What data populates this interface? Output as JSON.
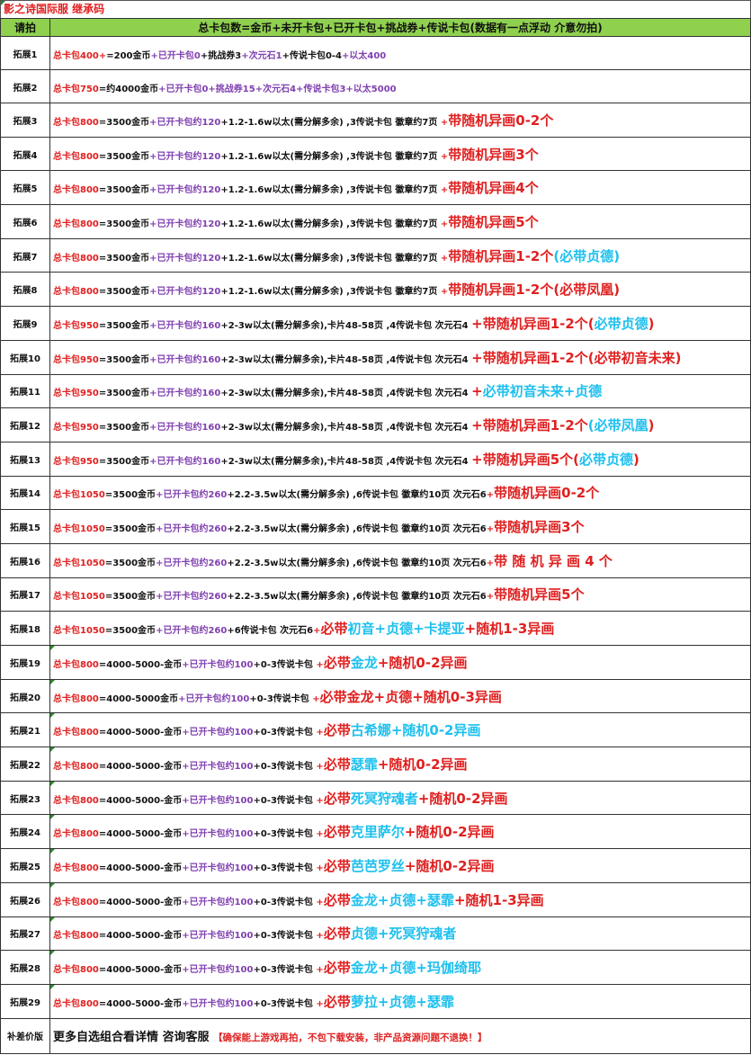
{
  "title": "影之诗国际服 继承码",
  "header": {
    "col1": "请拍",
    "col2": "总卡包数=金币+未开卡包+已开卡包+挑战券+传说卡包(数据有一点浮动 介意勿拍)"
  },
  "colors": {
    "header_bg": "#8fd14f",
    "red": "#e02020",
    "purple": "#8040b0",
    "cyan": "#1ec0ee"
  },
  "rows": [
    {
      "label": "拓展1",
      "segments": [
        {
          "t": "总卡包400+",
          "s": "r"
        },
        {
          "t": "=200金币",
          "s": "k"
        },
        {
          "t": "+已开卡包0",
          "s": "p"
        },
        {
          "t": "+挑战券3",
          "s": "k"
        },
        {
          "t": "+次元石1",
          "s": "p"
        },
        {
          "t": "+传说卡包0-4",
          "s": "k"
        },
        {
          "t": "+以太400",
          "s": "p"
        }
      ]
    },
    {
      "label": "拓展2",
      "segments": [
        {
          "t": "总卡包750",
          "s": "r"
        },
        {
          "t": "=约4000金币",
          "s": "k"
        },
        {
          "t": "+已开卡包0+挑战券15+次元石4+传说卡包3+以太5000",
          "s": "p"
        }
      ]
    },
    {
      "label": "拓展3",
      "segments": [
        {
          "t": "总卡包800",
          "s": "r"
        },
        {
          "t": "=3500金币",
          "s": "k"
        },
        {
          "t": "+已开卡包约120",
          "s": "p"
        },
        {
          "t": "+1.2-1.6w以太(需分解多余) ,3传说卡包 徽章约7页  ",
          "s": "k"
        },
        {
          "t": "+",
          "s": "r"
        },
        {
          "t": "带随机异画0-2个",
          "s": "R"
        }
      ]
    },
    {
      "label": "拓展4",
      "segments": [
        {
          "t": "总卡包800",
          "s": "r"
        },
        {
          "t": "=3500金币",
          "s": "k"
        },
        {
          "t": "+已开卡包约120",
          "s": "p"
        },
        {
          "t": "+1.2-1.6w以太(需分解多余) ,3传说卡包 徽章约7页  ",
          "s": "k"
        },
        {
          "t": "+",
          "s": "r"
        },
        {
          "t": "带随机异画3个",
          "s": "R"
        }
      ]
    },
    {
      "label": "拓展5",
      "segments": [
        {
          "t": "总卡包800",
          "s": "r"
        },
        {
          "t": "=3500金币",
          "s": "k"
        },
        {
          "t": "+已开卡包约120",
          "s": "p"
        },
        {
          "t": "+1.2-1.6w以太(需分解多余) ,3传说卡包 徽章约7页  ",
          "s": "k"
        },
        {
          "t": "+",
          "s": "r"
        },
        {
          "t": "带随机异画4个",
          "s": "R"
        }
      ]
    },
    {
      "label": "拓展6",
      "segments": [
        {
          "t": "总卡包800",
          "s": "r"
        },
        {
          "t": "=3500金币",
          "s": "k"
        },
        {
          "t": "+已开卡包约120",
          "s": "p"
        },
        {
          "t": "+1.2-1.6w以太(需分解多余) ,3传说卡包 徽章约7页  ",
          "s": "k"
        },
        {
          "t": "+",
          "s": "r"
        },
        {
          "t": "带随机异画5个",
          "s": "R"
        }
      ]
    },
    {
      "label": "拓展7",
      "segments": [
        {
          "t": "总卡包800",
          "s": "r"
        },
        {
          "t": "=3500金币",
          "s": "k"
        },
        {
          "t": "+已开卡包约120",
          "s": "p"
        },
        {
          "t": "+1.2-1.6w以太(需分解多余) ,3传说卡包 徽章约7页  ",
          "s": "k"
        },
        {
          "t": "+",
          "s": "r"
        },
        {
          "t": "带随机异画1-2个",
          "s": "R"
        },
        {
          "t": "(必带贞德)",
          "s": "C"
        }
      ]
    },
    {
      "label": "拓展8",
      "segments": [
        {
          "t": "总卡包800",
          "s": "r"
        },
        {
          "t": "=3500金币",
          "s": "k"
        },
        {
          "t": "+已开卡包约120",
          "s": "p"
        },
        {
          "t": "+1.2-1.6w以太(需分解多余) ,3传说卡包 徽章约7页  ",
          "s": "k"
        },
        {
          "t": "+",
          "s": "r"
        },
        {
          "t": "带随机异画1-2个(必带凤凰)",
          "s": "R"
        }
      ]
    },
    {
      "label": "拓展9",
      "segments": [
        {
          "t": "总卡包950",
          "s": "r"
        },
        {
          "t": "=3500金币",
          "s": "k"
        },
        {
          "t": "+已开卡包约160",
          "s": "p"
        },
        {
          "t": "+2-3w以太(需分解多余),卡片48-58页 ,4传说卡包   次元石4 ",
          "s": "k"
        },
        {
          "t": "+带随机异画1-2个(",
          "s": "R"
        },
        {
          "t": "必带贞德",
          "s": "C"
        },
        {
          "t": ")",
          "s": "R"
        }
      ]
    },
    {
      "label": "拓展10",
      "segments": [
        {
          "t": "总卡包950",
          "s": "r"
        },
        {
          "t": "=3500金币",
          "s": "k"
        },
        {
          "t": "+已开卡包约160",
          "s": "p"
        },
        {
          "t": "+2-3w以太(需分解多余),卡片48-58页 ,4传说卡包   次元石4 ",
          "s": "k"
        },
        {
          "t": "+带随机异画1-2个(必带初音未来)",
          "s": "R"
        }
      ]
    },
    {
      "label": "拓展11",
      "segments": [
        {
          "t": "总卡包950",
          "s": "r"
        },
        {
          "t": "=3500金币",
          "s": "k"
        },
        {
          "t": "+已开卡包约160",
          "s": "p"
        },
        {
          "t": "+2-3w以太(需分解多余),卡片48-58页 ,4传说卡包   次元石4 ",
          "s": "k"
        },
        {
          "t": "+",
          "s": "R"
        },
        {
          "t": "必带初音未来+贞德",
          "s": "C"
        }
      ]
    },
    {
      "label": "拓展12",
      "segments": [
        {
          "t": "总卡包950",
          "s": "r"
        },
        {
          "t": "=3500金币",
          "s": "k"
        },
        {
          "t": "+已开卡包约160",
          "s": "p"
        },
        {
          "t": "+2-3w以太(需分解多余),卡片48-58页 ,4传说卡包   次元石4 ",
          "s": "k"
        },
        {
          "t": "+带随机异画1-2个",
          "s": "R"
        },
        {
          "t": "(必带凤凰",
          "s": "C"
        },
        {
          "t": ")",
          "s": "R"
        }
      ]
    },
    {
      "label": "拓展13",
      "segments": [
        {
          "t": "总卡包950",
          "s": "r"
        },
        {
          "t": "=3500金币",
          "s": "k"
        },
        {
          "t": "+已开卡包约160",
          "s": "p"
        },
        {
          "t": "+2-3w以太(需分解多余),卡片48-58页 ,4传说卡包   次元石4 ",
          "s": "k"
        },
        {
          "t": "+带随机异画5个(",
          "s": "R"
        },
        {
          "t": "必带贞德",
          "s": "C"
        },
        {
          "t": ")",
          "s": "R"
        }
      ]
    },
    {
      "label": "拓展14",
      "segments": [
        {
          "t": "总卡包1050",
          "s": "r"
        },
        {
          "t": "=3500金币",
          "s": "k"
        },
        {
          "t": "+已开卡包约260",
          "s": "p"
        },
        {
          "t": "+2.2-3.5w以太(需分解多余) ,6传说卡包 徽章约10页  次元石6",
          "s": "k"
        },
        {
          "t": "+",
          "s": "r"
        },
        {
          "t": "带随机异画0-2个",
          "s": "R"
        }
      ]
    },
    {
      "label": "拓展15",
      "segments": [
        {
          "t": "总卡包1050",
          "s": "r"
        },
        {
          "t": "=3500金币",
          "s": "k"
        },
        {
          "t": "+已开卡包约260",
          "s": "p"
        },
        {
          "t": "+2.2-3.5w以太(需分解多余) ,6传说卡包 徽章约10页  次元石6",
          "s": "k"
        },
        {
          "t": "+",
          "s": "r"
        },
        {
          "t": "带随机异画3个",
          "s": "R"
        }
      ]
    },
    {
      "label": "拓展16",
      "segments": [
        {
          "t": "总卡包1050",
          "s": "r"
        },
        {
          "t": "=3500金币",
          "s": "k"
        },
        {
          "t": "+已开卡包约260",
          "s": "p"
        },
        {
          "t": "+2.2-3.5w以太(需分解多余) ,6传说卡包 徽章约10页  次元石6",
          "s": "k"
        },
        {
          "t": "+",
          "s": "r"
        },
        {
          "t": "带 随 机 异 画 4 个",
          "s": "R"
        }
      ]
    },
    {
      "label": "拓展17",
      "segments": [
        {
          "t": "总卡包1050",
          "s": "r"
        },
        {
          "t": "=3500金币",
          "s": "k"
        },
        {
          "t": "+已开卡包约260",
          "s": "p"
        },
        {
          "t": "+2.2-3.5w以太(需分解多余) ,6传说卡包 徽章约10页  次元石6",
          "s": "k"
        },
        {
          "t": "+",
          "s": "r"
        },
        {
          "t": "带随机异画5个",
          "s": "R"
        }
      ]
    },
    {
      "label": "拓展18",
      "segments": [
        {
          "t": "总卡包1050",
          "s": "r"
        },
        {
          "t": "=3500金币",
          "s": "k"
        },
        {
          "t": "+已开卡包约260",
          "s": "p"
        },
        {
          "t": "+6传说卡包 次元石6",
          "s": "k"
        },
        {
          "t": "+",
          "s": "r"
        },
        {
          "t": "必带",
          "s": "R"
        },
        {
          "t": "初音+贞德+卡提亚",
          "s": "C"
        },
        {
          "t": "+随机1-3异画",
          "s": "R"
        }
      ]
    },
    {
      "label": "拓展19",
      "segments": [
        {
          "t": "总卡包800",
          "s": "r"
        },
        {
          "t": "=4000-5000-金币",
          "s": "k"
        },
        {
          "t": "+已开卡包约100",
          "s": "p"
        },
        {
          "t": "+0-3传说卡包  ",
          "s": "k"
        },
        {
          "t": "+",
          "s": "r"
        },
        {
          "t": "必带",
          "s": "R"
        },
        {
          "t": "金龙",
          "s": "C"
        },
        {
          "t": "+随机0-2异画",
          "s": "R"
        }
      ]
    },
    {
      "label": "拓展20",
      "segments": [
        {
          "t": "总卡包800",
          "s": "r"
        },
        {
          "t": "=4000-5000金币",
          "s": "k"
        },
        {
          "t": "+已开卡包约100",
          "s": "p"
        },
        {
          "t": "+0-3传说卡包  ",
          "s": "k"
        },
        {
          "t": "+",
          "s": "r"
        },
        {
          "t": "必带金龙+贞德+随机0-3异画",
          "s": "R"
        }
      ]
    },
    {
      "label": "拓展21",
      "segments": [
        {
          "t": "总卡包800",
          "s": "r"
        },
        {
          "t": "=4000-5000-金币",
          "s": "k"
        },
        {
          "t": "+已开卡包约100",
          "s": "p"
        },
        {
          "t": "+0-3传说卡包  ",
          "s": "k"
        },
        {
          "t": "+",
          "s": "r"
        },
        {
          "t": "必带",
          "s": "R"
        },
        {
          "t": "古希娜+随机0-2异画",
          "s": "C"
        }
      ]
    },
    {
      "label": "拓展22",
      "segments": [
        {
          "t": "总卡包800",
          "s": "r"
        },
        {
          "t": "=4000-5000-金币",
          "s": "k"
        },
        {
          "t": "+已开卡包约100",
          "s": "p"
        },
        {
          "t": "+0-3传说卡包  ",
          "s": "k"
        },
        {
          "t": "+",
          "s": "r"
        },
        {
          "t": "必带",
          "s": "R"
        },
        {
          "t": "瑟霏",
          "s": "C"
        },
        {
          "t": "+随机0-2异画",
          "s": "R"
        }
      ]
    },
    {
      "label": "拓展23",
      "segments": [
        {
          "t": "总卡包800",
          "s": "r"
        },
        {
          "t": "=4000-5000-金币",
          "s": "k"
        },
        {
          "t": "+已开卡包约100",
          "s": "p"
        },
        {
          "t": "+0-3传说卡包  ",
          "s": "k"
        },
        {
          "t": "+",
          "s": "r"
        },
        {
          "t": "必带",
          "s": "R"
        },
        {
          "t": "死冥狩魂者",
          "s": "C"
        },
        {
          "t": "+随机0-2异画",
          "s": "R"
        }
      ]
    },
    {
      "label": "拓展24",
      "segments": [
        {
          "t": "总卡包800",
          "s": "r"
        },
        {
          "t": "=4000-5000-金币",
          "s": "k"
        },
        {
          "t": "+已开卡包约100",
          "s": "p"
        },
        {
          "t": "+0-3传说卡包  ",
          "s": "k"
        },
        {
          "t": "+",
          "s": "r"
        },
        {
          "t": "必带",
          "s": "R"
        },
        {
          "t": "克里萨尔",
          "s": "C"
        },
        {
          "t": "+随机0-2异画",
          "s": "R"
        }
      ]
    },
    {
      "label": "拓展25",
      "segments": [
        {
          "t": "总卡包800",
          "s": "r"
        },
        {
          "t": "=4000-5000-金币",
          "s": "k"
        },
        {
          "t": "+已开卡包约100",
          "s": "p"
        },
        {
          "t": "+0-3传说卡包  ",
          "s": "k"
        },
        {
          "t": "+",
          "s": "r"
        },
        {
          "t": "必带",
          "s": "R"
        },
        {
          "t": "芭芭罗丝",
          "s": "C"
        },
        {
          "t": "+随机0-2异画",
          "s": "R"
        }
      ]
    },
    {
      "label": "拓展26",
      "segments": [
        {
          "t": "总卡包800",
          "s": "r"
        },
        {
          "t": "=4000-5000-金币",
          "s": "k"
        },
        {
          "t": "+已开卡包约100",
          "s": "p"
        },
        {
          "t": "+0-3传说卡包  ",
          "s": "k"
        },
        {
          "t": "+",
          "s": "r"
        },
        {
          "t": "必带",
          "s": "R"
        },
        {
          "t": "金龙+贞德+瑟霏",
          "s": "C"
        },
        {
          "t": "+随机1-3异画",
          "s": "R"
        }
      ]
    },
    {
      "label": "拓展27",
      "segments": [
        {
          "t": "总卡包800",
          "s": "r"
        },
        {
          "t": "=4000-5000-金币",
          "s": "k"
        },
        {
          "t": "+已开卡包约100",
          "s": "p"
        },
        {
          "t": "+0-3传说卡包  ",
          "s": "k"
        },
        {
          "t": "+",
          "s": "r"
        },
        {
          "t": "必带",
          "s": "R"
        },
        {
          "t": "贞德+死冥狩魂者",
          "s": "C"
        }
      ]
    },
    {
      "label": "拓展28",
      "segments": [
        {
          "t": "总卡包800",
          "s": "r"
        },
        {
          "t": "=4000-5000-金币",
          "s": "k"
        },
        {
          "t": "+已开卡包约100",
          "s": "p"
        },
        {
          "t": "+0-3传说卡包  ",
          "s": "k"
        },
        {
          "t": "+",
          "s": "r"
        },
        {
          "t": "必带",
          "s": "R"
        },
        {
          "t": "金龙+贞德+玛伽绮耶",
          "s": "C"
        }
      ]
    },
    {
      "label": "拓展29",
      "segments": [
        {
          "t": "总卡包800",
          "s": "r"
        },
        {
          "t": "=4000-5000-金币",
          "s": "k"
        },
        {
          "t": "+已开卡包约100",
          "s": "p"
        },
        {
          "t": "+0-3传说卡包  ",
          "s": "k"
        },
        {
          "t": "+",
          "s": "r"
        },
        {
          "t": "必带",
          "s": "R"
        },
        {
          "t": "萝拉+贞德+瑟霏",
          "s": "C"
        }
      ]
    }
  ],
  "footer": {
    "label": "补差价版",
    "segments": [
      {
        "t": "更多自选组合看详情 咨询客服 ",
        "s": "K"
      },
      {
        "t": "【确保能上游戏再拍，不包下载安装，非产品资源问题不退换！】",
        "s": "rm"
      }
    ]
  }
}
